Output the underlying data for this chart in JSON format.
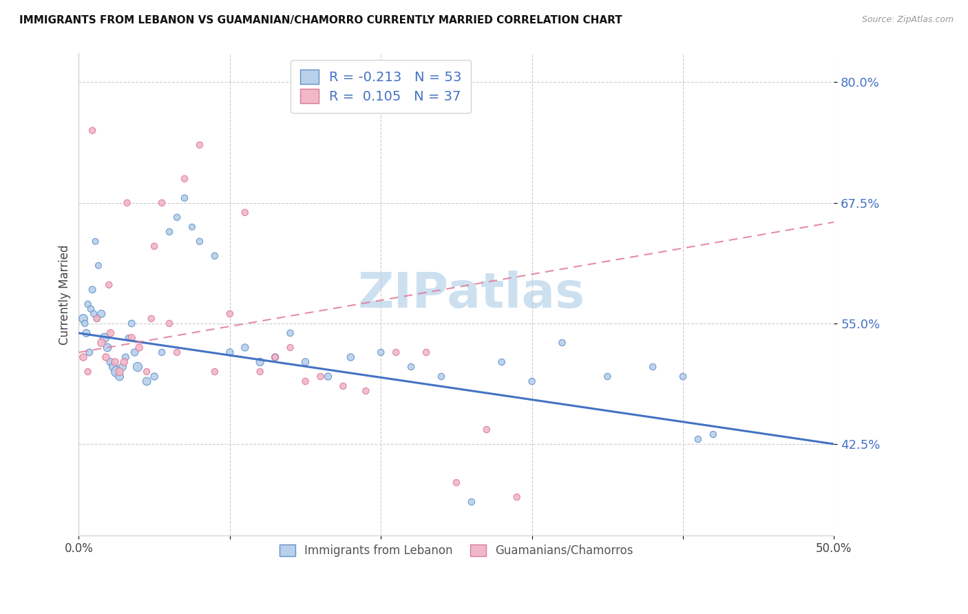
{
  "title": "IMMIGRANTS FROM LEBANON VS GUAMANIAN/CHAMORRO CURRENTLY MARRIED CORRELATION CHART",
  "source": "Source: ZipAtlas.com",
  "ylabel": "Currently Married",
  "y_ticks": [
    42.5,
    55.0,
    67.5,
    80.0
  ],
  "y_tick_labels": [
    "42.5%",
    "55.0%",
    "67.5%",
    "80.0%"
  ],
  "x_lim": [
    0.0,
    50.0
  ],
  "y_lim": [
    33.0,
    83.0
  ],
  "legend_labels": [
    "Immigrants from Lebanon",
    "Guamanians/Chamorros"
  ],
  "legend_r_values": [
    "-0.213",
    "0.105"
  ],
  "legend_n_values": [
    "53",
    "37"
  ],
  "blue_color": "#b8d0ea",
  "pink_color": "#f0b8c8",
  "blue_edge_color": "#6090c8",
  "pink_edge_color": "#e07898",
  "blue_line_color": "#4472c4",
  "pink_line_color": "#e07898",
  "watermark_color": "#cce0f0",
  "blue_dots_x": [
    0.3,
    0.5,
    0.7,
    0.9,
    1.1,
    1.3,
    1.5,
    1.7,
    1.9,
    2.1,
    2.3,
    2.5,
    2.7,
    2.9,
    3.1,
    3.3,
    3.5,
    3.7,
    3.9,
    4.5,
    5.0,
    5.5,
    6.0,
    6.5,
    7.0,
    7.5,
    8.0,
    9.0,
    10.0,
    11.0,
    12.0,
    13.0,
    14.0,
    15.0,
    16.5,
    18.0,
    20.0,
    22.0,
    24.0,
    26.0,
    28.0,
    30.0,
    32.0,
    35.0,
    38.0,
    40.0,
    42.0,
    0.4,
    0.6,
    0.8,
    1.0,
    1.2,
    41.0
  ],
  "blue_dots_y": [
    55.5,
    54.0,
    52.0,
    58.5,
    63.5,
    61.0,
    56.0,
    53.5,
    52.5,
    51.0,
    50.5,
    50.0,
    49.5,
    50.5,
    51.5,
    53.5,
    55.0,
    52.0,
    50.5,
    49.0,
    49.5,
    52.0,
    64.5,
    66.0,
    68.0,
    65.0,
    63.5,
    62.0,
    52.0,
    52.5,
    51.0,
    51.5,
    54.0,
    51.0,
    49.5,
    51.5,
    52.0,
    50.5,
    49.5,
    36.5,
    51.0,
    49.0,
    53.0,
    49.5,
    50.5,
    49.5,
    43.5,
    55.0,
    57.0,
    56.5,
    56.0,
    55.5,
    43.0
  ],
  "blue_dots_size": [
    80,
    60,
    50,
    50,
    40,
    40,
    60,
    90,
    70,
    60,
    80,
    120,
    70,
    60,
    50,
    40,
    50,
    55,
    90,
    70,
    55,
    45,
    45,
    45,
    45,
    40,
    45,
    45,
    55,
    55,
    65,
    55,
    45,
    55,
    55,
    55,
    45,
    45,
    45,
    45,
    45,
    45,
    45,
    45,
    45,
    45,
    45,
    45,
    45,
    45,
    45,
    45,
    45
  ],
  "pink_dots_x": [
    0.3,
    0.6,
    0.9,
    1.2,
    1.5,
    1.8,
    2.1,
    2.4,
    2.7,
    3.0,
    3.5,
    4.0,
    4.5,
    5.0,
    5.5,
    6.0,
    7.0,
    8.0,
    9.0,
    10.0,
    11.0,
    12.0,
    13.0,
    14.0,
    15.0,
    16.0,
    17.5,
    19.0,
    21.0,
    23.0,
    25.0,
    27.0,
    29.0,
    2.0,
    3.2,
    4.8,
    6.5
  ],
  "pink_dots_y": [
    51.5,
    50.0,
    75.0,
    55.5,
    53.0,
    51.5,
    54.0,
    51.0,
    50.0,
    51.0,
    53.5,
    52.5,
    50.0,
    63.0,
    67.5,
    55.0,
    70.0,
    73.5,
    50.0,
    56.0,
    66.5,
    50.0,
    51.5,
    52.5,
    49.0,
    49.5,
    48.5,
    48.0,
    52.0,
    52.0,
    38.5,
    44.0,
    37.0,
    59.0,
    67.5,
    55.5,
    52.0
  ],
  "pink_dots_size": [
    55,
    45,
    45,
    45,
    65,
    55,
    55,
    55,
    65,
    55,
    55,
    55,
    45,
    45,
    45,
    45,
    45,
    45,
    45,
    45,
    45,
    45,
    45,
    45,
    45,
    45,
    45,
    45,
    45,
    45,
    45,
    45,
    45,
    45,
    45,
    45,
    45
  ],
  "blue_trend_x": [
    0.0,
    50.0
  ],
  "blue_trend_y": [
    54.0,
    42.5
  ],
  "pink_trend_x": [
    0.0,
    50.0
  ],
  "pink_trend_y": [
    52.0,
    65.5
  ],
  "x_tick_positions": [
    0.0,
    10.0,
    20.0,
    30.0,
    40.0,
    50.0
  ],
  "x_tick_labels": [
    "0.0%",
    "",
    "",
    "",
    "",
    "50.0%"
  ]
}
